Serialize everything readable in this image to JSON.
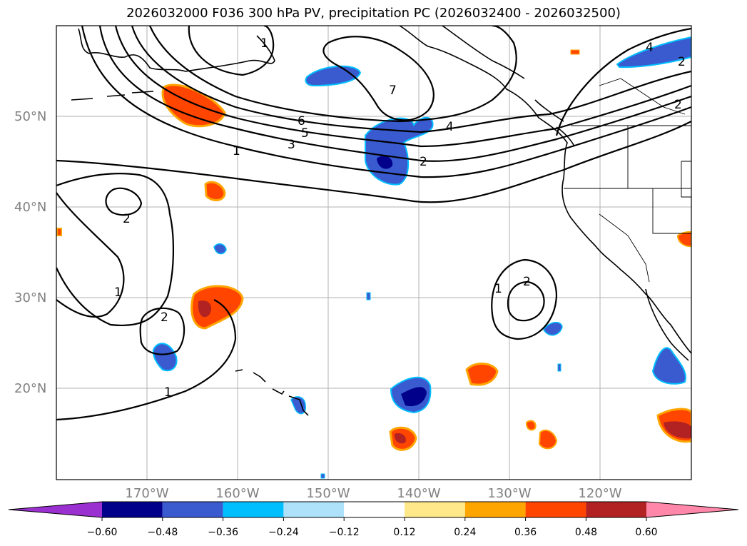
{
  "title": "2026032000 F036 300 hPa PV, precipitation PC (2026032400 - 2026032500)",
  "latitude_labels": [
    "50°N",
    "40°N",
    "30°N",
    "20°N"
  ],
  "longitude_labels": [
    "170°W",
    "160°W",
    "150°W",
    "140°W",
    "130°W",
    "120°W"
  ],
  "colorbar": {
    "colors": [
      "#9b30d0",
      "#00008b",
      "#3a5bd0",
      "#00bfff",
      "#aee2fa",
      "#ffffff",
      "#ffe88a",
      "#ffa500",
      "#ff4500",
      "#b22222",
      "#ff88aa"
    ],
    "tick_labels": [
      "−0.60",
      "−0.48",
      "−0.36",
      "−0.24",
      "−0.12",
      "0.12",
      "0.24",
      "0.36",
      "0.48",
      "0.60"
    ]
  },
  "contour_labels": [
    "6",
    "5",
    "3",
    "1",
    "2",
    "4",
    "7",
    "2",
    "1",
    "1",
    "2",
    "4",
    "1",
    "2",
    "2",
    "1",
    "2"
  ]
}
